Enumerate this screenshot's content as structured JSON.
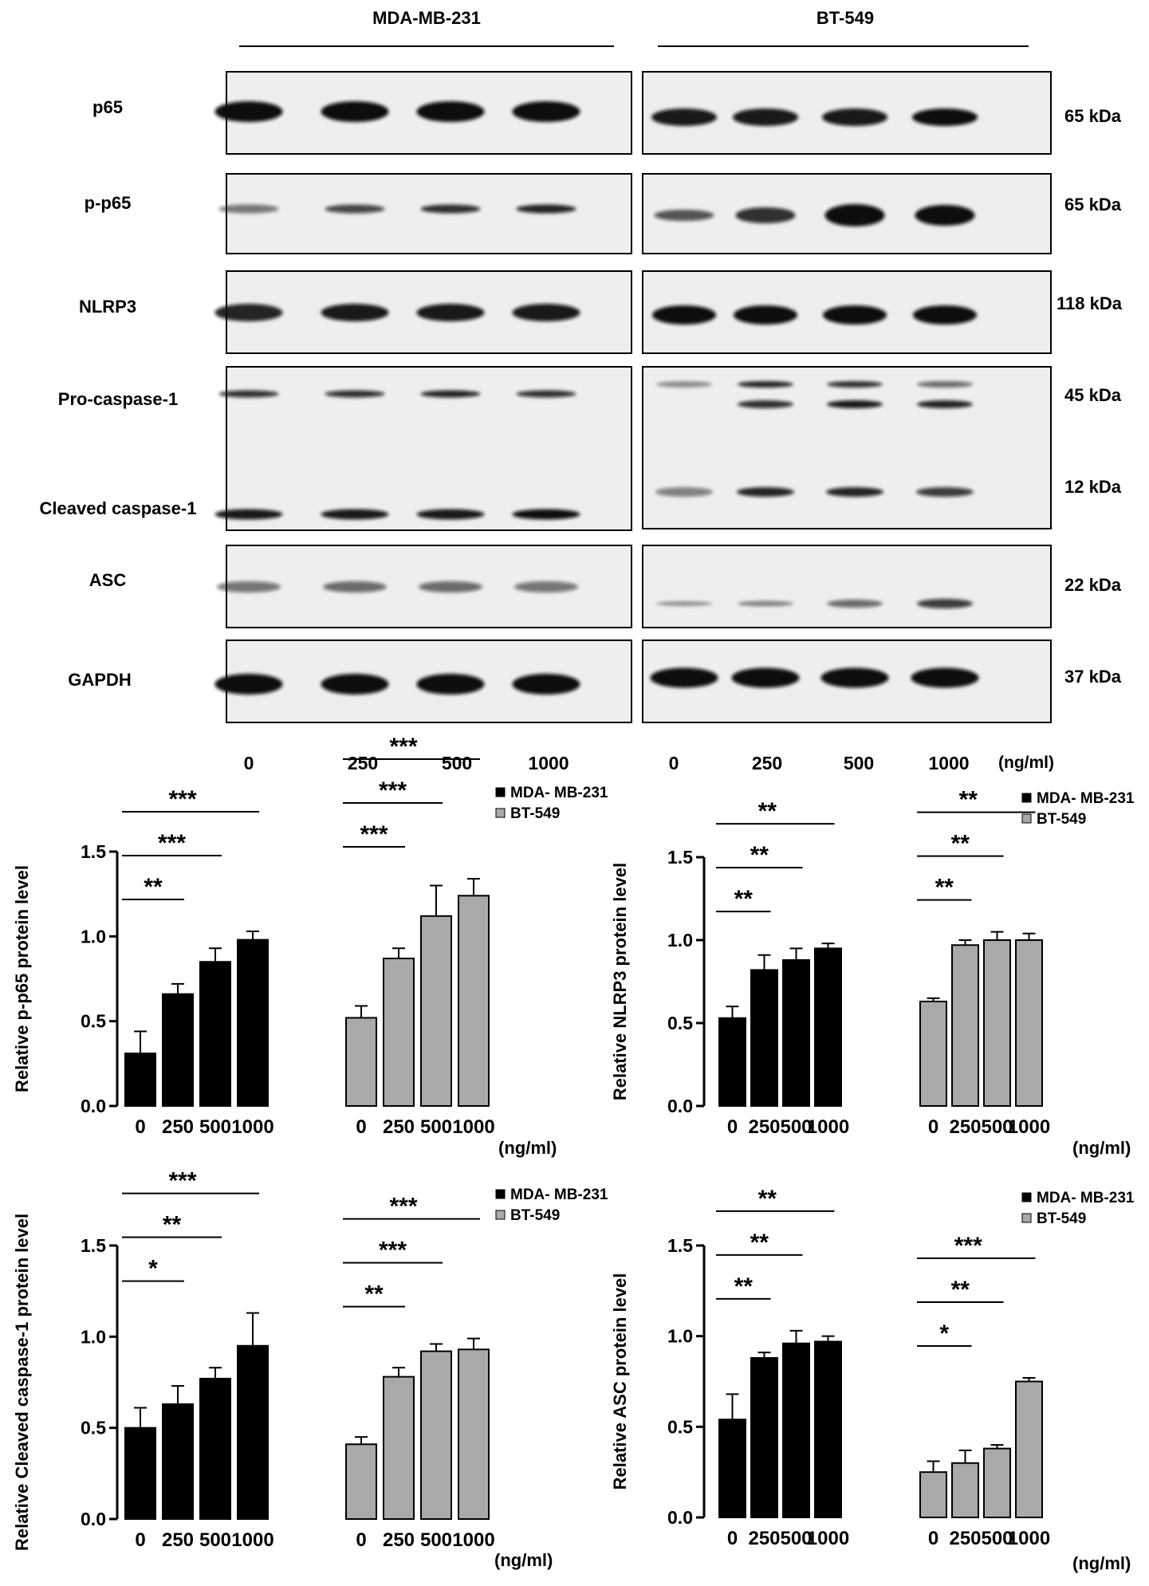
{
  "western_blot": {
    "cell_lines": [
      "MDA-MB-231",
      "BT-549"
    ],
    "proteins": [
      {
        "label": "p65",
        "kda": "65 kDa"
      },
      {
        "label": "p-p65",
        "kda": "65 kDa"
      },
      {
        "label": "NLRP3",
        "kda": "118 kDa"
      },
      {
        "label": "Pro-caspase-1",
        "kda": "45 kDa"
      },
      {
        "label": "Cleaved caspase-1",
        "kda": "12 kDa"
      },
      {
        "label": "ASC",
        "kda": "22 kDa"
      },
      {
        "label": "GAPDH",
        "kda": "37 kDa"
      }
    ],
    "doses": [
      "0",
      "250",
      "500",
      "1000"
    ],
    "dose_unit": "(ng/ml)"
  },
  "colors": {
    "mda": "#000000",
    "bt": "#a9a9a9",
    "band": "#0d0d0d",
    "membrane": "#eeeeee"
  },
  "chart_data": [
    {
      "type": "bar",
      "ylabel": "Relative p-p65 protein level",
      "ylim": [
        0,
        1.5
      ],
      "yticks": [
        "0.0",
        "0.5",
        "1.0",
        "1.5"
      ],
      "categories": [
        "0",
        "250",
        "500",
        "1000"
      ],
      "xunit": "(ng/ml)",
      "series": [
        {
          "name": "MDA- MB-231",
          "values": [
            0.31,
            0.66,
            0.85,
            0.98
          ],
          "errors": [
            0.13,
            0.06,
            0.08,
            0.05
          ]
        },
        {
          "name": "BT-549",
          "values": [
            0.52,
            0.87,
            1.12,
            1.24
          ],
          "errors": [
            0.07,
            0.06,
            0.18,
            0.1
          ]
        }
      ],
      "significance": [
        {
          "series": 0,
          "to": 1,
          "label": "**"
        },
        {
          "series": 0,
          "to": 2,
          "label": "***"
        },
        {
          "series": 0,
          "to": 3,
          "label": "***"
        },
        {
          "series": 1,
          "to": 1,
          "label": "***"
        },
        {
          "series": 1,
          "to": 2,
          "label": "***"
        },
        {
          "series": 1,
          "to": 3,
          "label": "***"
        }
      ]
    },
    {
      "type": "bar",
      "ylabel": "Relative NLRP3 protein level",
      "ylim": [
        0,
        1.5
      ],
      "yticks": [
        "0.0",
        "0.5",
        "1.0",
        "1.5"
      ],
      "categories": [
        "0",
        "250",
        "500",
        "1000"
      ],
      "xunit": "(ng/ml)",
      "series": [
        {
          "name": "MDA- MB-231",
          "values": [
            0.53,
            0.82,
            0.88,
            0.95
          ],
          "errors": [
            0.07,
            0.09,
            0.07,
            0.03
          ]
        },
        {
          "name": "BT-549",
          "values": [
            0.63,
            0.97,
            1.0,
            1.0
          ],
          "errors": [
            0.02,
            0.03,
            0.05,
            0.04
          ]
        }
      ],
      "significance": [
        {
          "series": 0,
          "to": 1,
          "label": "**"
        },
        {
          "series": 0,
          "to": 2,
          "label": "**"
        },
        {
          "series": 0,
          "to": 3,
          "label": "**"
        },
        {
          "series": 1,
          "to": 1,
          "label": "**"
        },
        {
          "series": 1,
          "to": 2,
          "label": "**"
        },
        {
          "series": 1,
          "to": 3,
          "label": "**"
        }
      ]
    },
    {
      "type": "bar",
      "ylabel": "Relative Cleaved caspase-1 protein level",
      "ylim": [
        0,
        1.5
      ],
      "yticks": [
        "0.0",
        "0.5",
        "1.0",
        "1.5"
      ],
      "categories": [
        "0",
        "250",
        "500",
        "1000"
      ],
      "xunit": "(ng/ml)",
      "series": [
        {
          "name": "MDA- MB-231",
          "values": [
            0.5,
            0.63,
            0.77,
            0.95
          ],
          "errors": [
            0.11,
            0.1,
            0.06,
            0.18
          ]
        },
        {
          "name": "BT-549",
          "values": [
            0.41,
            0.78,
            0.92,
            0.93
          ],
          "errors": [
            0.04,
            0.05,
            0.04,
            0.06
          ]
        }
      ],
      "significance": [
        {
          "series": 0,
          "to": 1,
          "label": "*"
        },
        {
          "series": 0,
          "to": 2,
          "label": "**"
        },
        {
          "series": 0,
          "to": 3,
          "label": "***"
        },
        {
          "series": 1,
          "to": 1,
          "label": "**"
        },
        {
          "series": 1,
          "to": 2,
          "label": "***"
        },
        {
          "series": 1,
          "to": 3,
          "label": "***"
        }
      ]
    },
    {
      "type": "bar",
      "ylabel": "Relative ASC protein level",
      "ylim": [
        0,
        1.5
      ],
      "yticks": [
        "0.0",
        "0.5",
        "1.0",
        "1.5"
      ],
      "categories": [
        "0",
        "250",
        "500",
        "1000"
      ],
      "xunit": "(ng/ml)",
      "series": [
        {
          "name": "MDA- MB-231",
          "values": [
            0.54,
            0.88,
            0.96,
            0.97
          ],
          "errors": [
            0.14,
            0.03,
            0.07,
            0.03
          ]
        },
        {
          "name": "BT-549",
          "values": [
            0.25,
            0.3,
            0.38,
            0.75
          ],
          "errors": [
            0.06,
            0.07,
            0.02,
            0.02
          ]
        }
      ],
      "significance": [
        {
          "series": 0,
          "to": 1,
          "label": "**"
        },
        {
          "series": 0,
          "to": 2,
          "label": "**"
        },
        {
          "series": 0,
          "to": 3,
          "label": "**"
        },
        {
          "series": 1,
          "to": 1,
          "label": "*"
        },
        {
          "series": 1,
          "to": 2,
          "label": "**"
        },
        {
          "series": 1,
          "to": 3,
          "label": "***"
        }
      ]
    }
  ]
}
